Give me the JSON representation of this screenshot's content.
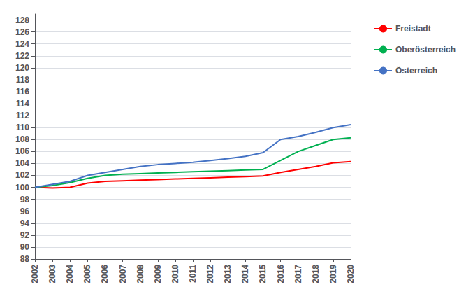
{
  "chart_data": {
    "type": "line",
    "x": [
      2002,
      2003,
      2004,
      2005,
      2006,
      2007,
      2008,
      2009,
      2010,
      2011,
      2012,
      2013,
      2014,
      2015,
      2016,
      2017,
      2018,
      2019,
      2020
    ],
    "series": [
      {
        "name": "Freistadt",
        "color": "#ff0000",
        "values": [
          100.0,
          99.9,
          100.0,
          100.7,
          101.0,
          101.1,
          101.2,
          101.3,
          101.4,
          101.5,
          101.6,
          101.7,
          101.8,
          101.9,
          102.5,
          103.0,
          103.5,
          104.1,
          104.3
        ]
      },
      {
        "name": "Oberösterreich",
        "color": "#00b050",
        "values": [
          100.0,
          100.3,
          100.8,
          101.5,
          102.0,
          102.2,
          102.3,
          102.4,
          102.5,
          102.6,
          102.7,
          102.8,
          102.9,
          103.0,
          104.5,
          106.0,
          107.0,
          108.0,
          108.3
        ]
      },
      {
        "name": "Österreich",
        "color": "#4472c4",
        "values": [
          100.0,
          100.5,
          101.0,
          102.0,
          102.5,
          103.0,
          103.5,
          103.8,
          104.0,
          104.2,
          104.5,
          104.8,
          105.2,
          105.8,
          108.0,
          108.5,
          109.2,
          110.0,
          110.5
        ]
      }
    ],
    "xlim": [
      2002,
      2020
    ],
    "xticks": [
      2002,
      2003,
      2004,
      2005,
      2006,
      2007,
      2008,
      2009,
      2010,
      2011,
      2012,
      2013,
      2014,
      2015,
      2016,
      2017,
      2018,
      2019,
      2020
    ],
    "ylim": [
      88,
      129
    ],
    "yticks": [
      88,
      90,
      92,
      94,
      96,
      98,
      100,
      102,
      104,
      106,
      108,
      110,
      112,
      114,
      116,
      118,
      120,
      122,
      124,
      126,
      128
    ],
    "grid": true,
    "legend": "right"
  }
}
